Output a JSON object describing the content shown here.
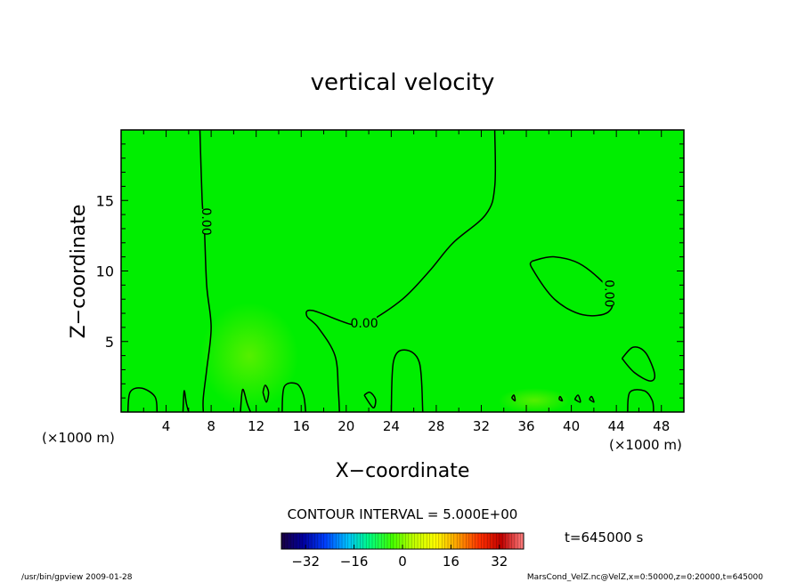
{
  "chart_data": {
    "type": "heatmap",
    "title": "vertical velocity",
    "xlabel": "X−coordinate",
    "ylabel": "Z−coordinate",
    "x_unit": "(×1000 m)",
    "y_unit": "(×1000 m)",
    "xlim": [
      0,
      50
    ],
    "ylim": [
      0,
      20
    ],
    "x_ticks": [
      "4",
      "8",
      "12",
      "16",
      "20",
      "24",
      "28",
      "32",
      "36",
      "40",
      "44",
      "48"
    ],
    "y_ticks": [
      "5",
      "10",
      "15"
    ],
    "contour_interval": "CONTOUR INTERVAL = 5.000E+00",
    "contour_labels": [
      "0.00",
      "0.00",
      "0.00"
    ],
    "colorbar": {
      "range": [
        -40,
        40
      ],
      "tick_labels": [
        "−32",
        "−16",
        "0",
        "16",
        "32"
      ],
      "colors": [
        "#1a0040",
        "#0000a0",
        "#0040ff",
        "#00c0ff",
        "#00ff80",
        "#40ff00",
        "#c0ff00",
        "#ffff00",
        "#ffa000",
        "#ff3000",
        "#c00000",
        "#ff8080"
      ]
    },
    "time_label": "t=645000 s",
    "field_color": "#00ee00",
    "grid": false,
    "zero_contours": [
      [
        [
          7,
          20
        ],
        [
          7.2,
          15
        ],
        [
          7.4,
          13
        ],
        [
          7.6,
          9
        ],
        [
          8,
          6
        ],
        [
          7.6,
          3
        ],
        [
          7.3,
          1
        ],
        [
          7.3,
          0
        ]
      ],
      [
        [
          33.2,
          20
        ],
        [
          33.2,
          16
        ],
        [
          32.4,
          14
        ],
        [
          29.5,
          12
        ],
        [
          27.4,
          10
        ],
        [
          25,
          8
        ],
        [
          22,
          6.4
        ],
        [
          20.5,
          6.2
        ],
        [
          17,
          7.2
        ],
        [
          16.5,
          6.8
        ],
        [
          17.5,
          6
        ],
        [
          19,
          4
        ],
        [
          19.3,
          1.5
        ],
        [
          19.4,
          0
        ]
      ],
      [
        [
          36.5,
          10.7
        ],
        [
          38.5,
          11
        ],
        [
          41,
          10.4
        ],
        [
          43.5,
          8.5
        ],
        [
          43.3,
          7.1
        ],
        [
          41,
          6.9
        ],
        [
          38.5,
          8
        ],
        [
          36.5,
          10.2
        ],
        [
          36.5,
          10.7
        ]
      ],
      [
        [
          0.6,
          0
        ],
        [
          0.8,
          1.4
        ],
        [
          1.8,
          1.7
        ],
        [
          3,
          1.1
        ],
        [
          3.2,
          0
        ]
      ],
      [
        [
          5.5,
          0
        ],
        [
          5.6,
          1.5
        ],
        [
          5.8,
          0.6
        ],
        [
          6.0,
          0
        ]
      ],
      [
        [
          14.3,
          0
        ],
        [
          14.5,
          1.8
        ],
        [
          15.6,
          2.0
        ],
        [
          16.2,
          1.2
        ],
        [
          16.4,
          0
        ]
      ],
      [
        [
          24,
          0
        ],
        [
          24.2,
          3.6
        ],
        [
          25.2,
          4.4
        ],
        [
          26.5,
          3.5
        ],
        [
          26.8,
          0
        ]
      ],
      [
        [
          44.5,
          3.8
        ],
        [
          45.5,
          4.6
        ],
        [
          46.6,
          4.2
        ],
        [
          47.4,
          2.7
        ],
        [
          47,
          2.2
        ],
        [
          45.6,
          2.8
        ],
        [
          44.5,
          3.8
        ]
      ],
      [
        [
          45,
          0
        ],
        [
          45.2,
          1.4
        ],
        [
          46.5,
          1.5
        ],
        [
          47.2,
          0.8
        ],
        [
          47.3,
          0
        ]
      ],
      [
        [
          12.6,
          1.4
        ],
        [
          12.8,
          1.9
        ],
        [
          13.1,
          1.4
        ],
        [
          12.9,
          0.7
        ],
        [
          12.6,
          1.4
        ]
      ],
      [
        [
          10.6,
          0
        ],
        [
          10.8,
          1.6
        ],
        [
          11.2,
          0.6
        ],
        [
          11.5,
          0
        ]
      ],
      [
        [
          21.6,
          1.2
        ],
        [
          22.1,
          1.4
        ],
        [
          22.6,
          0.9
        ],
        [
          22.4,
          0.3
        ],
        [
          21.6,
          1.2
        ]
      ],
      [
        [
          34.7,
          1.0
        ],
        [
          34.9,
          1.2
        ],
        [
          35.0,
          0.8
        ],
        [
          34.7,
          1.0
        ]
      ],
      [
        [
          38.9,
          0.9
        ],
        [
          39.0,
          1.1
        ],
        [
          39.2,
          0.8
        ],
        [
          38.9,
          0.9
        ]
      ],
      [
        [
          40.3,
          0.9
        ],
        [
          40.6,
          1.2
        ],
        [
          40.8,
          0.7
        ],
        [
          40.3,
          0.9
        ]
      ],
      [
        [
          41.6,
          0.9
        ],
        [
          41.8,
          1.1
        ],
        [
          42.0,
          0.7
        ],
        [
          41.6,
          0.9
        ]
      ]
    ],
    "label_positions": [
      [
        7.6,
        13.5
      ],
      [
        21.6,
        6.3
      ],
      [
        43.4,
        8.4
      ]
    ]
  },
  "footer": {
    "left": "/usr/bin/gpview   2009-01-28",
    "right": "MarsCond_VelZ.nc@VelZ,x=0:50000,z=0:20000,t=645000"
  }
}
